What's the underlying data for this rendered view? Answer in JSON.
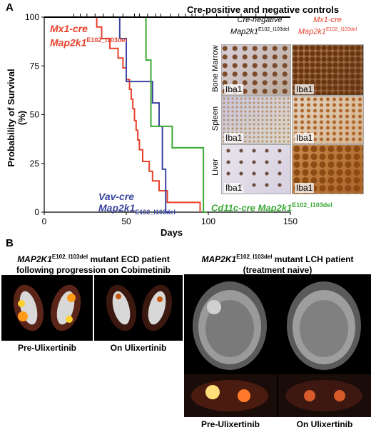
{
  "panel_a_letter": "A",
  "panel_b_letter": "B",
  "controls_label": "Cre-positive and negative controls",
  "y_axis_title": "Probability of Survival (%)",
  "x_axis_title": "Days",
  "curve_labels": {
    "mx1_line1": "Mx1-cre",
    "mx1_line2_main": "Map2k1",
    "mx1_line2_sup": "E102_I103del",
    "vav_line1": "Vav-cre",
    "vav_line2_main": "Map2k1",
    "vav_line2_sub": "E102_I103del",
    "cd11c_main": "Cd11c-cre Map2k1",
    "cd11c_sup": "E102_I103del"
  },
  "ihc": {
    "col1_line1": "Cre-negative",
    "col1_line2_main": "Map2k1",
    "col1_line2_sup": "E102_I103del",
    "col2_line1": "Mx1-cre",
    "col2_line2_main": "Map2k1",
    "col2_line2_sup": "E102_I103del",
    "rows": [
      "Bone Marrow",
      "Spleen",
      "Liver"
    ],
    "stain": "Iba1"
  },
  "panel_b": {
    "ecd_title_main": "MAP2K1",
    "ecd_title_sup": "E102_I103del",
    "ecd_title_rest": " mutant ECD patient",
    "ecd_title_line2": "following progression on Cobimetinib",
    "lch_title_main": "MAP2K1",
    "lch_title_sup": "E102_I103del",
    "lch_title_rest": " mutant LCH patient",
    "lch_title_line2": "(treatment naive)",
    "pre_label": "Pre-Ulixertinib",
    "on_label": "On Ulixertinib"
  },
  "colors": {
    "mx1": "#e8412c",
    "vav": "#3b46a0",
    "cd11c": "#3aa935",
    "controls": "#000000"
  },
  "chart_data": {
    "type": "line",
    "xlabel": "Days",
    "ylabel": "Probability of Survival (%)",
    "xlim": [
      0,
      150
    ],
    "ylim": [
      0,
      100
    ],
    "x_ticks": [
      0,
      50,
      100,
      150
    ],
    "y_ticks": [
      0,
      25,
      50,
      75,
      100
    ],
    "series": [
      {
        "name": "Mx1-cre Map2k1 E102_I103del",
        "color": "#e8412c",
        "steps": [
          [
            0,
            100
          ],
          [
            32,
            100
          ],
          [
            32,
            95
          ],
          [
            35,
            95
          ],
          [
            35,
            89
          ],
          [
            40,
            89
          ],
          [
            40,
            84
          ],
          [
            45,
            84
          ],
          [
            45,
            79
          ],
          [
            48,
            79
          ],
          [
            48,
            74
          ],
          [
            50,
            74
          ],
          [
            50,
            68
          ],
          [
            52,
            68
          ],
          [
            52,
            63
          ],
          [
            53,
            63
          ],
          [
            53,
            58
          ],
          [
            54,
            58
          ],
          [
            54,
            53
          ],
          [
            55,
            53
          ],
          [
            55,
            47
          ],
          [
            56,
            47
          ],
          [
            56,
            42
          ],
          [
            57,
            42
          ],
          [
            57,
            37
          ],
          [
            58,
            37
          ],
          [
            58,
            32
          ],
          [
            60,
            32
          ],
          [
            60,
            26
          ],
          [
            64,
            26
          ],
          [
            64,
            21
          ],
          [
            66,
            21
          ],
          [
            66,
            16
          ],
          [
            70,
            16
          ],
          [
            70,
            11
          ],
          [
            75,
            11
          ],
          [
            75,
            5
          ],
          [
            95,
            5
          ],
          [
            95,
            0
          ]
        ]
      },
      {
        "name": "Vav-cre Map2k1 E102_I103del",
        "color": "#3b46a0",
        "steps": [
          [
            0,
            100
          ],
          [
            46,
            100
          ],
          [
            46,
            89
          ],
          [
            50,
            89
          ],
          [
            50,
            67
          ],
          [
            66,
            67
          ],
          [
            66,
            56
          ],
          [
            70,
            56
          ],
          [
            70,
            44
          ],
          [
            72,
            44
          ],
          [
            72,
            22
          ],
          [
            74,
            22
          ],
          [
            74,
            0
          ],
          [
            76,
            0
          ]
        ]
      },
      {
        "name": "Cd11c-cre Map2k1 E102_I103del",
        "color": "#3aa935",
        "steps": [
          [
            0,
            100
          ],
          [
            62,
            100
          ],
          [
            62,
            78
          ],
          [
            65,
            78
          ],
          [
            65,
            44
          ],
          [
            78,
            44
          ],
          [
            78,
            33
          ],
          [
            97,
            33
          ],
          [
            97,
            0
          ],
          [
            99,
            0
          ]
        ]
      },
      {
        "name": "Cre-positive and negative controls",
        "color": "#000000",
        "steps": [
          [
            0,
            100
          ],
          [
            150,
            100
          ]
        ],
        "censor_x": [
          18,
          22,
          26,
          31,
          36,
          42,
          48,
          55,
          58,
          63,
          68,
          71,
          77,
          82,
          86,
          90,
          92,
          97,
          105,
          112,
          120,
          129,
          135
        ]
      }
    ]
  }
}
